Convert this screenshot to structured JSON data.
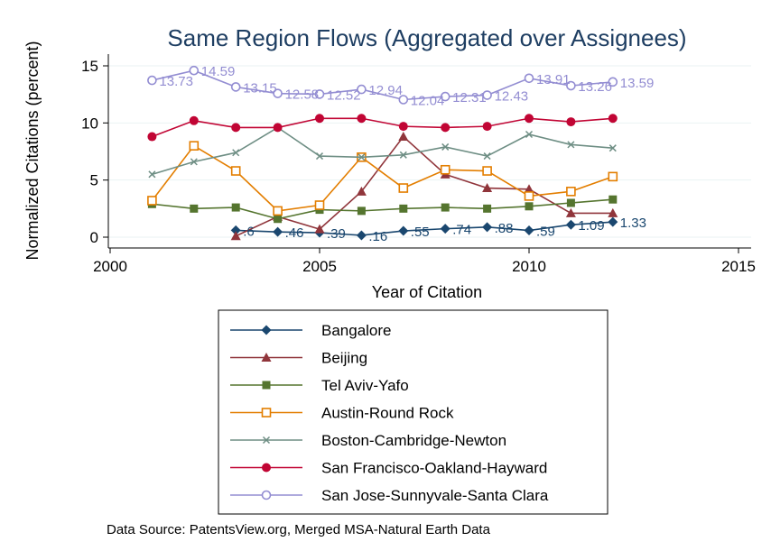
{
  "chart_data": {
    "type": "line",
    "title": "Same Region Flows (Aggregated over Assignees)",
    "xlabel": "Year of Citation",
    "ylabel": "Normalized Citations (percent)",
    "xlim": [
      2000,
      2015
    ],
    "ylim": [
      0,
      15
    ],
    "xticks": [
      2000,
      2005,
      2010,
      2015
    ],
    "yticks": [
      0,
      5,
      10,
      15
    ],
    "grid": "horizontal",
    "legend_position": "bottom",
    "source": "Data Source: PatentsView.org, Merged MSA-Natural Earth Data",
    "series": [
      {
        "name": "Bangalore",
        "color": "#1a476f",
        "marker": "diamond",
        "x": [
          2003,
          2004,
          2005,
          2006,
          2007,
          2008,
          2009,
          2010,
          2011,
          2012
        ],
        "values": [
          0.6,
          0.46,
          0.39,
          0.16,
          0.55,
          0.74,
          0.88,
          0.59,
          1.09,
          1.33
        ],
        "labels": [
          ".6",
          ".46",
          ".39",
          ".16",
          ".55",
          ".74",
          ".88",
          ".59",
          "1.09",
          "1.33"
        ]
      },
      {
        "name": "Beijing",
        "color": "#90353b",
        "marker": "triangle",
        "x": [
          2003,
          2004,
          2005,
          2006,
          2007,
          2008,
          2009,
          2010,
          2011,
          2012
        ],
        "values": [
          0.1,
          1.8,
          0.7,
          4.0,
          8.8,
          5.5,
          4.3,
          4.2,
          2.1,
          2.1
        ]
      },
      {
        "name": "Tel Aviv-Yafo",
        "color": "#55752f",
        "marker": "square",
        "x": [
          2001,
          2002,
          2003,
          2004,
          2005,
          2006,
          2007,
          2008,
          2009,
          2010,
          2011,
          2012
        ],
        "values": [
          2.9,
          2.5,
          2.6,
          1.6,
          2.4,
          2.3,
          2.5,
          2.6,
          2.5,
          2.7,
          3.0,
          3.3
        ]
      },
      {
        "name": "Austin-Round Rock",
        "color": "#e37e00",
        "marker": "hollow-square",
        "x": [
          2001,
          2002,
          2003,
          2004,
          2005,
          2006,
          2007,
          2008,
          2009,
          2010,
          2011,
          2012
        ],
        "values": [
          3.2,
          8.0,
          5.8,
          2.3,
          2.8,
          7.0,
          4.3,
          5.9,
          5.8,
          3.6,
          4.0,
          5.3
        ]
      },
      {
        "name": "Boston-Cambridge-Newton",
        "color": "#6e8e84",
        "marker": "x",
        "x": [
          2001,
          2002,
          2003,
          2004,
          2005,
          2006,
          2007,
          2008,
          2009,
          2010,
          2011,
          2012
        ],
        "values": [
          5.5,
          6.6,
          7.4,
          9.6,
          7.1,
          7.0,
          7.2,
          7.9,
          7.1,
          9.0,
          8.1,
          7.8
        ]
      },
      {
        "name": "San Francisco-Oakland-Hayward",
        "color": "#c10534",
        "marker": "circle",
        "x": [
          2001,
          2002,
          2003,
          2004,
          2005,
          2006,
          2007,
          2008,
          2009,
          2010,
          2011,
          2012
        ],
        "values": [
          8.8,
          10.2,
          9.6,
          9.6,
          10.4,
          10.4,
          9.7,
          9.6,
          9.7,
          10.4,
          10.1,
          10.4
        ]
      },
      {
        "name": "San Jose-Sunnyvale-Santa Clara",
        "color": "#938dd2",
        "marker": "hollow-circle",
        "x": [
          2001,
          2002,
          2003,
          2004,
          2005,
          2006,
          2007,
          2008,
          2009,
          2010,
          2011,
          2012
        ],
        "values": [
          13.73,
          14.59,
          13.15,
          12.58,
          12.52,
          12.94,
          12.04,
          12.31,
          12.43,
          13.91,
          13.26,
          13.59
        ],
        "labels": [
          "13.73",
          "14.59",
          "13.15",
          "12.58",
          "12.52",
          "12.94",
          "12.04",
          "12.31",
          "12.43",
          "13.91",
          "13.26",
          "13.59"
        ]
      }
    ]
  }
}
